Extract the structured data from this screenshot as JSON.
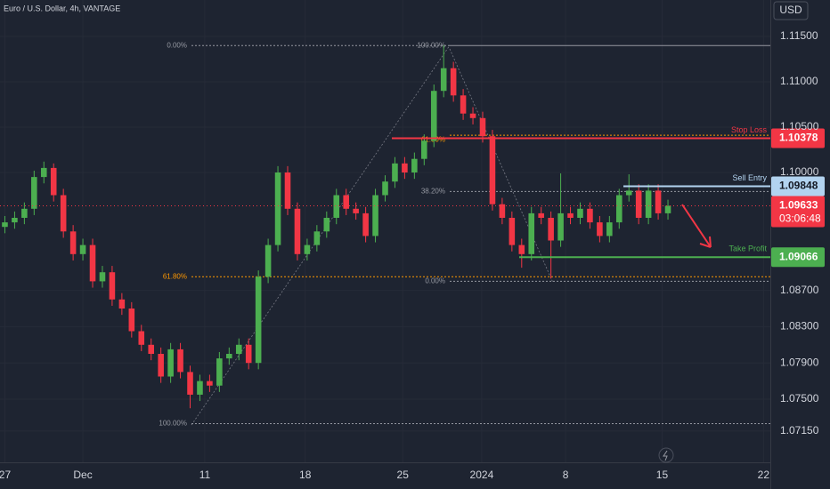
{
  "chart_data": {
    "type": "candlestick",
    "title": "Euro / U.S. Dollar, 4h, VANTAGE",
    "currency": "USD",
    "up_color": "#4caf50",
    "down_color": "#f23645",
    "xlim": [
      -0.5,
      78.5
    ],
    "xticks": [
      {
        "value": 0,
        "label": "27"
      },
      {
        "value": 8,
        "label": "Dec"
      },
      {
        "value": 20.5,
        "label": "11"
      },
      {
        "value": 30.8,
        "label": "18"
      },
      {
        "value": 40.8,
        "label": "25"
      },
      {
        "value": 48.9,
        "label": "2024"
      },
      {
        "value": 57.5,
        "label": "8"
      },
      {
        "value": 67.4,
        "label": "15"
      },
      {
        "value": 77.8,
        "label": "22"
      }
    ],
    "ylim": [
      1.06804,
      1.11902
    ],
    "yticks": [
      {
        "value": 1.115,
        "label": "1.11500"
      },
      {
        "value": 1.11,
        "label": "1.11000"
      },
      {
        "value": 1.105,
        "label": "1.10500"
      },
      {
        "value": 1.1,
        "label": "1.10000"
      },
      {
        "value": 1.087,
        "label": "1.08700"
      },
      {
        "value": 1.083,
        "label": "1.08300"
      },
      {
        "value": 1.079,
        "label": "1.07900"
      },
      {
        "value": 1.075,
        "label": "1.07500"
      },
      {
        "value": 1.0715,
        "label": "1.07150"
      }
    ],
    "open": [
      1.094,
      1.0945,
      1.095,
      1.096,
      1.0995,
      1.1005,
      1.0975,
      1.0935,
      1.091,
      1.092,
      1.088,
      1.089,
      1.086,
      1.085,
      1.0825,
      1.081,
      1.08,
      1.0775,
      1.0805,
      1.078,
      1.0755,
      1.077,
      1.0765,
      1.0795,
      1.08,
      1.081,
      1.079,
      1.0885,
      1.092,
      1.1,
      1.096,
      1.091,
      1.092,
      1.0935,
      1.095,
      1.0975,
      1.096,
      1.0955,
      1.093,
      1.0975,
      1.099,
      1.101,
      1.1,
      1.1015,
      1.1035,
      1.109,
      1.1115,
      1.1085,
      1.1065,
      1.106,
      1.104,
      1.0965,
      1.095,
      1.092,
      1.091,
      1.0955,
      1.095,
      1.0925,
      1.0955,
      1.095,
      1.096,
      1.0945,
      1.093,
      1.0945,
      1.0975,
      1.098,
      1.095,
      1.098,
      1.0955
    ],
    "high": [
      1.0952,
      1.0957,
      1.0967,
      1.1002,
      1.1012,
      1.101,
      1.0982,
      1.0942,
      1.0927,
      1.0927,
      1.0897,
      1.0897,
      1.0867,
      1.0857,
      1.0832,
      1.0817,
      1.0807,
      1.0812,
      1.0812,
      1.0787,
      1.0777,
      1.0777,
      1.0802,
      1.0807,
      1.0817,
      1.0817,
      1.0892,
      1.0927,
      1.1007,
      1.1007,
      1.0967,
      1.0927,
      1.0942,
      1.0957,
      1.0982,
      1.0982,
      1.0967,
      1.0962,
      1.0982,
      1.0997,
      1.1017,
      1.1017,
      1.1022,
      1.1042,
      1.1097,
      1.114,
      1.1122,
      1.1092,
      1.1072,
      1.1067,
      1.1047,
      1.0972,
      1.0957,
      1.0927,
      1.0962,
      1.0962,
      1.0957,
      1.0999,
      1.0962,
      1.0967,
      1.0967,
      1.0952,
      1.0952,
      1.0982,
      1.0998,
      1.0987,
      1.0987,
      1.0987,
      1.097
    ],
    "low": [
      1.0933,
      1.0938,
      1.0943,
      1.0953,
      1.0988,
      1.0968,
      1.0928,
      1.0903,
      1.0903,
      1.0873,
      1.0873,
      1.0853,
      1.0843,
      1.0818,
      1.0803,
      1.0793,
      1.0768,
      1.0768,
      1.0773,
      1.074,
      1.0748,
      1.0758,
      1.0758,
      1.0788,
      1.0793,
      1.0783,
      1.0783,
      1.0878,
      1.0913,
      1.0953,
      1.0903,
      1.0903,
      1.0913,
      1.0928,
      1.0943,
      1.0953,
      1.0948,
      1.0923,
      1.0923,
      1.0968,
      1.0983,
      1.0993,
      1.0993,
      1.1008,
      1.1028,
      1.1083,
      1.1078,
      1.1058,
      1.1053,
      1.1033,
      1.0958,
      1.0943,
      1.0913,
      1.0895,
      1.0903,
      1.0943,
      1.0883,
      1.0918,
      1.0943,
      1.0943,
      1.0938,
      1.0923,
      1.0923,
      1.0938,
      1.0968,
      1.0943,
      1.0943,
      1.0948,
      1.0948
    ],
    "close": [
      1.0945,
      1.095,
      1.096,
      1.0995,
      1.1005,
      1.0975,
      1.0935,
      1.091,
      1.092,
      1.088,
      1.089,
      1.086,
      1.085,
      1.0825,
      1.081,
      1.08,
      1.0775,
      1.0805,
      1.078,
      1.0755,
      1.077,
      1.0765,
      1.0795,
      1.08,
      1.081,
      1.079,
      1.0885,
      1.092,
      1.1,
      1.096,
      1.091,
      1.092,
      1.0935,
      1.095,
      1.0975,
      1.096,
      1.0955,
      1.093,
      1.0975,
      1.099,
      1.101,
      1.1,
      1.1015,
      1.1035,
      1.109,
      1.1115,
      1.1085,
      1.1065,
      1.106,
      1.104,
      1.0965,
      1.095,
      1.092,
      1.091,
      1.0955,
      1.095,
      1.0925,
      1.0955,
      1.095,
      1.096,
      1.0945,
      1.093,
      1.0945,
      1.0975,
      1.098,
      1.095,
      1.098,
      1.0955,
      1.09633
    ],
    "current_price": {
      "value": 1.09633,
      "countdown": "03:06:48",
      "color": "#f23645"
    },
    "levels": [
      {
        "name": "Stop Loss",
        "value": 1.10378,
        "color": "#f23645"
      },
      {
        "name": "Sell Entry",
        "value": 1.09848,
        "color": "#b2d3f0"
      },
      {
        "name": "Take Profit",
        "value": 1.09066,
        "color": "#4caf50"
      }
    ],
    "fibs": [
      {
        "levels": [
          {
            "value": 1.114,
            "label": "0.00%",
            "color": "#9598a1"
          },
          {
            "value": 1.0885,
            "label": "61.80%",
            "color": "#ff9800"
          },
          {
            "value": 1.0723,
            "label": "100.00%",
            "color": "#9598a1"
          }
        ]
      },
      {
        "levels": [
          {
            "value": 1.114,
            "label": "100.00%",
            "color": "#9598a1"
          },
          {
            "value": 1.1041,
            "label": "61.80%",
            "color": "#ff9800"
          },
          {
            "value": 1.0979,
            "label": "38.20%",
            "color": "#9598a1"
          },
          {
            "value": 1.088,
            "label": "0.00%",
            "color": "#9598a1"
          }
        ]
      }
    ]
  }
}
